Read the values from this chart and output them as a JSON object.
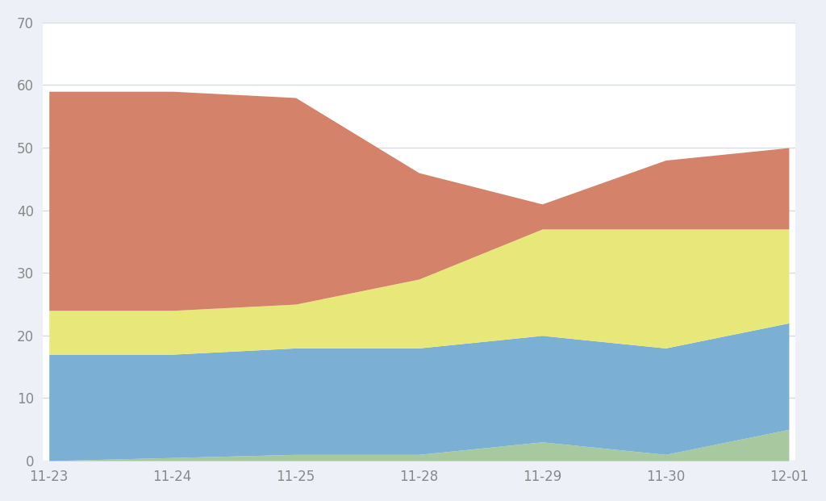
{
  "x_labels": [
    "11-23",
    "11-24",
    "11-25",
    "11-28",
    "11-29",
    "11-30",
    "12-01"
  ],
  "x_positions": [
    0,
    1,
    2,
    3,
    4,
    5,
    6
  ],
  "green_layer": [
    0,
    0.5,
    1.0,
    1.0,
    3.0,
    1.0,
    5.0
  ],
  "blue_layer": [
    17,
    16.5,
    17.0,
    17.0,
    17.0,
    17.0,
    17.0
  ],
  "yellow_layer": [
    7,
    7,
    7,
    11,
    17,
    19,
    15
  ],
  "red_layer": [
    35,
    35,
    33,
    17,
    4,
    11,
    13
  ],
  "colors": {
    "green": "#a8c8a0",
    "blue": "#7bafd4",
    "yellow": "#e8e87a",
    "red": "#d4826a"
  },
  "ylim": [
    0,
    70
  ],
  "yticks": [
    0,
    10,
    20,
    30,
    40,
    50,
    60,
    70
  ],
  "background_color": "#edf1f7",
  "plot_bg_color": "#ffffff",
  "grid_color": "#d5dce6"
}
